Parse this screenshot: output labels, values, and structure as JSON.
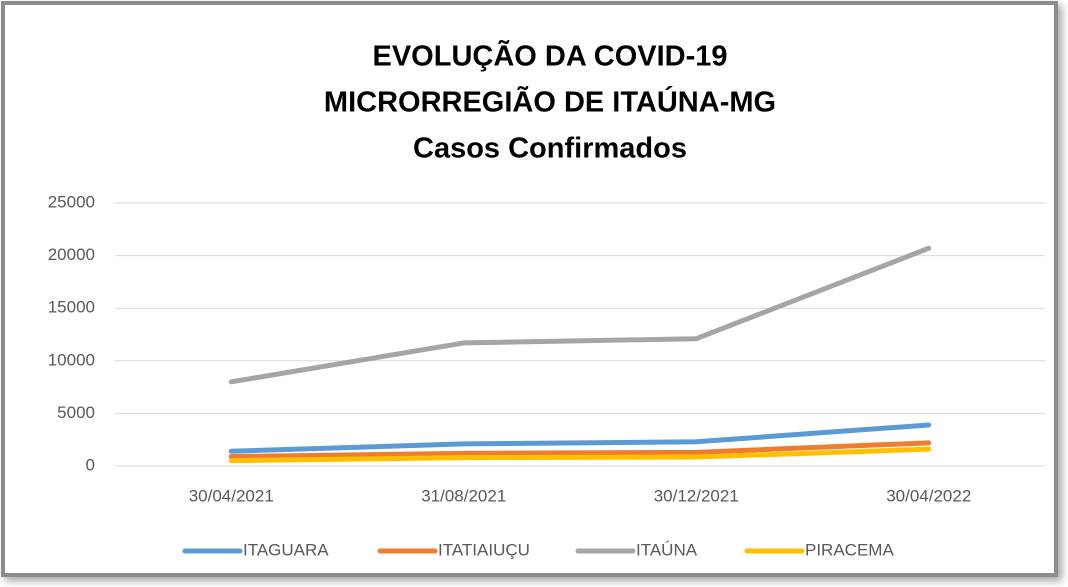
{
  "chart_data": {
    "type": "line",
    "title": [
      "EVOLUÇÃO DA COVID-19",
      "MICRORREGIÃO DE ITAÚNA-MG",
      "Casos Confirmados"
    ],
    "categories": [
      "30/04/2021",
      "31/08/2021",
      "30/12/2021",
      "30/04/2022"
    ],
    "series": [
      {
        "name": "ITAGUARA",
        "color": "#5b9bd5",
        "values": [
          1400,
          2100,
          2300,
          3900
        ]
      },
      {
        "name": "ITATIAIUÇU",
        "color": "#ed7d31",
        "values": [
          900,
          1200,
          1300,
          2200
        ]
      },
      {
        "name": "ITAÚNA",
        "color": "#a5a5a5",
        "values": [
          8000,
          11700,
          12100,
          20700
        ]
      },
      {
        "name": "PIRACEMA",
        "color": "#ffc000",
        "values": [
          500,
          800,
          850,
          1600
        ]
      }
    ],
    "ylim": [
      0,
      25000
    ],
    "yticks": [
      0,
      5000,
      10000,
      15000,
      20000,
      25000
    ],
    "grid": true,
    "legend": "bottom"
  }
}
